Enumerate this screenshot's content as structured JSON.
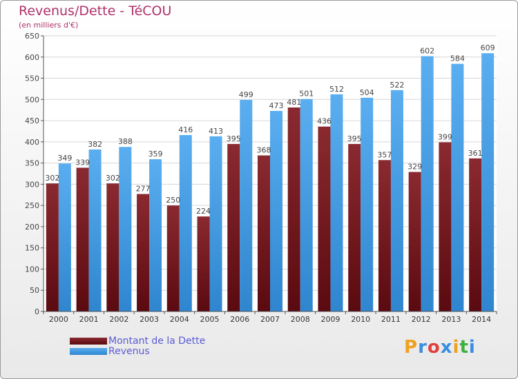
{
  "chart_data": {
    "type": "bar",
    "title": "Revenus/Dette - TéCOU",
    "subtitle": "(en milliers d'€)",
    "categories": [
      "2000",
      "2001",
      "2002",
      "2003",
      "2004",
      "2005",
      "2006",
      "2007",
      "2008",
      "2009",
      "2010",
      "2011",
      "2012",
      "2013",
      "2014"
    ],
    "series": [
      {
        "name": "Montant de la Dette",
        "color": "#7a1e24",
        "values": [
          302,
          339,
          302,
          277,
          250,
          224,
          395,
          368,
          481,
          436,
          395,
          357,
          329,
          399,
          361
        ]
      },
      {
        "name": "Revenus",
        "color": "#4aa0e6",
        "values": [
          349,
          382,
          388,
          359,
          416,
          413,
          499,
          473,
          501,
          512,
          504,
          522,
          602,
          584,
          609
        ]
      }
    ],
    "ylim": [
      0,
      650
    ],
    "yticks": [
      0,
      50,
      100,
      150,
      200,
      250,
      300,
      350,
      400,
      450,
      500,
      550,
      600,
      650
    ],
    "grid": true,
    "legend_position": "bottom-left"
  },
  "logo": {
    "letters": [
      "P",
      "r",
      "o",
      "x",
      "i",
      "t",
      "i"
    ],
    "colors": [
      "#f0a020",
      "#3a8ee0",
      "#e04040",
      "#3a8ee0",
      "#f0a020",
      "#40b040",
      "#3a8ee0"
    ]
  }
}
